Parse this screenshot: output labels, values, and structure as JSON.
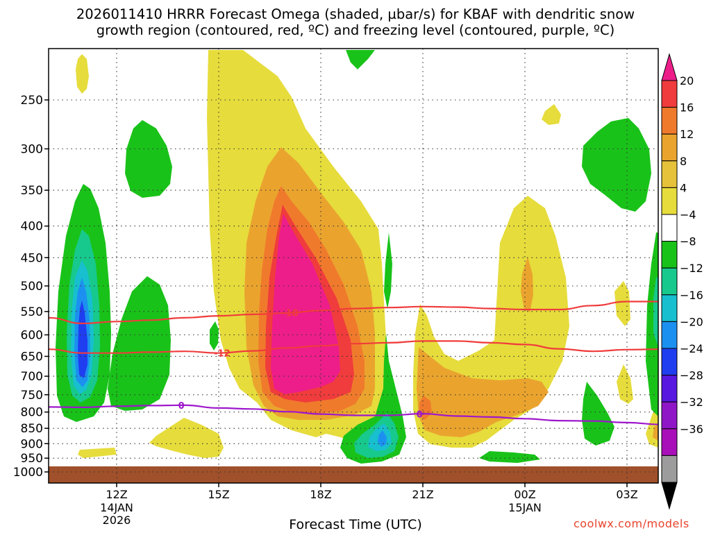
{
  "title": {
    "line1": "2026011410 HRRR Forecast Omega (shaded, µbar/s) for KBAF with dendritic snow",
    "line2": "growth region (contoured, red, ºC) and freezing level (contoured, purple, ºC)"
  },
  "credit": "coolwx.com/models",
  "chart_data": {
    "type": "time-height cross section (filled contour)",
    "xlabel": "Forecast Time (UTC)",
    "ylabel": "",
    "x_range_hours": [
      10,
      27.7
    ],
    "x_ticks": [
      {
        "hour": 12,
        "label": "12Z",
        "sub": [
          "14JAN",
          "2026"
        ]
      },
      {
        "hour": 15,
        "label": "15Z",
        "sub": []
      },
      {
        "hour": 18,
        "label": "18Z",
        "sub": []
      },
      {
        "hour": 21,
        "label": "21Z",
        "sub": []
      },
      {
        "hour": 24,
        "label": "00Z",
        "sub": [
          "15JAN"
        ]
      },
      {
        "hour": 27,
        "label": "03Z",
        "sub": []
      }
    ],
    "y_ticks_hPa": [
      250,
      300,
      350,
      400,
      450,
      500,
      550,
      600,
      650,
      700,
      750,
      800,
      850,
      900,
      950,
      1000
    ],
    "y_axis": "pressure (hPa), log scale, 1000 at bottom",
    "grid": "dotted",
    "colorbar": {
      "units": "µbar/s",
      "labels": [
        "20",
        "16",
        "12",
        "8",
        "4",
        "−4",
        "−8",
        "−12",
        "−16",
        "−20",
        "−24",
        "−28",
        "−32",
        "−36"
      ],
      "colors": [
        "#ed1e8a",
        "#f03c3c",
        "#f07a2c",
        "#eaa42e",
        "#e6c23a",
        "#e6dc3c",
        "#ffffff",
        "#19c219",
        "#17c98c",
        "#17bfcf",
        "#1c90f0",
        "#1f3ef0",
        "#5818e0",
        "#8f17c7",
        "#a80fb9",
        "#9c9c9c",
        "#000000"
      ]
    },
    "series": [
      {
        "name": "Omega shaded regions",
        "values": [
          {
            "label": "ascent max (pink, >20)",
            "hour": 17.2,
            "pressure_hPa": 560
          },
          {
            "label": "ascent max (pink, >20)",
            "hour": 17.2,
            "pressure_hPa": 430
          },
          {
            "label": "descent min (blue, <-20)",
            "hour": 11.1,
            "pressure_hPa": 610
          },
          {
            "label": "descent min (cyan, <-12)",
            "hour": 19.8,
            "pressure_hPa": 880
          }
        ]
      },
      {
        "name": "Dendritic growth -18 °C isotherm (red)",
        "label": "-18",
        "color": "#f03c3c",
        "hours": [
          10,
          11,
          12,
          13,
          14,
          15,
          16,
          17,
          18,
          19,
          20,
          21,
          22,
          23,
          24,
          25,
          26,
          27,
          28
        ],
        "pressure_hPa": [
          563,
          575,
          571,
          568,
          563,
          559,
          556,
          553,
          548,
          544,
          542,
          540,
          541,
          544,
          546,
          546,
          538,
          530,
          530
        ]
      },
      {
        "name": "Dendritic growth -12 °C isotherm (red)",
        "label": "-12",
        "color": "#f03c3c",
        "hours": [
          10,
          11,
          12,
          13,
          14,
          15,
          16,
          17,
          18,
          19,
          20,
          21,
          22,
          23,
          24,
          25,
          26,
          27,
          28
        ],
        "pressure_hPa": [
          633,
          642,
          642,
          640,
          638,
          642,
          637,
          630,
          625,
          620,
          618,
          614,
          614,
          618,
          622,
          632,
          638,
          634,
          633
        ]
      },
      {
        "name": "Freezing level 0 °C (purple)",
        "label": "0",
        "color": "#9e17cc",
        "hours": [
          10,
          11,
          12,
          13,
          14,
          15,
          16,
          17,
          18,
          19,
          20,
          21,
          22,
          23,
          24,
          25,
          26,
          27,
          28
        ],
        "pressure_hPa": [
          785,
          786,
          783,
          781,
          780,
          788,
          791,
          799,
          806,
          810,
          810,
          805,
          812,
          815,
          820,
          826,
          827,
          832,
          838
        ]
      }
    ]
  }
}
